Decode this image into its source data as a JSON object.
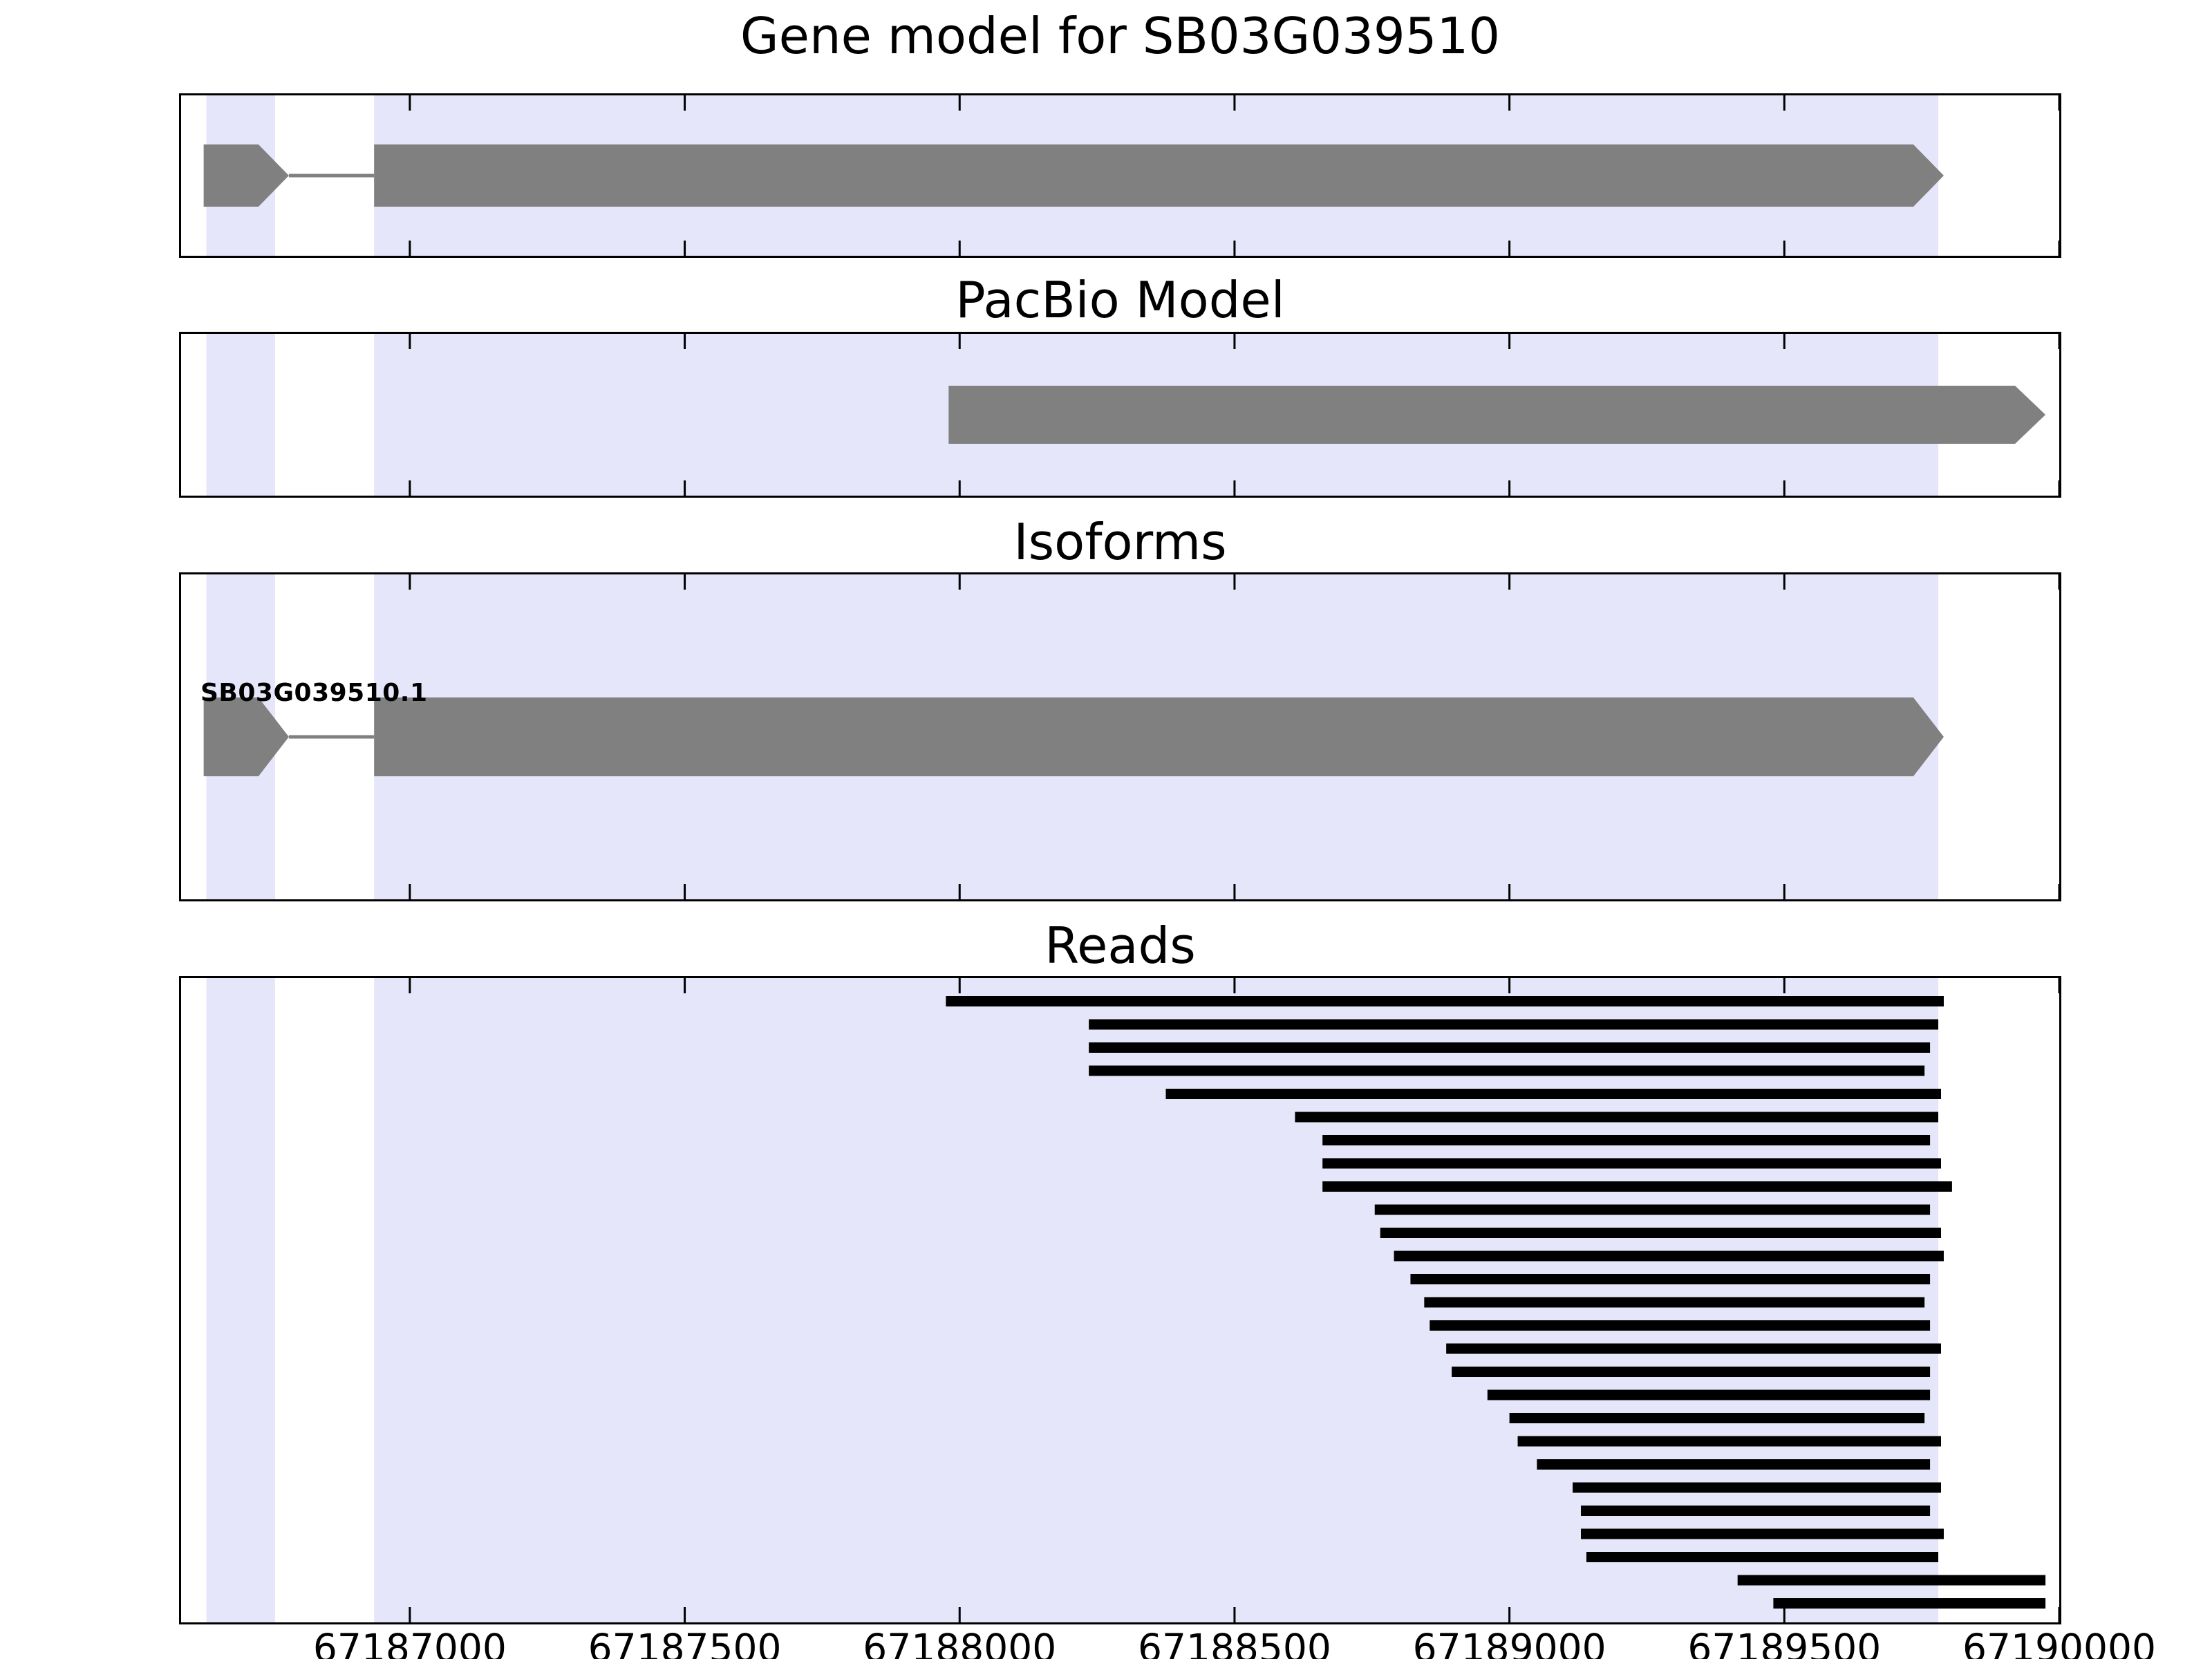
{
  "chart_data": {
    "type": "genome-browser",
    "x_axis": {
      "min": 67186584,
      "max": 67190000,
      "ticks": [
        67187000,
        67187500,
        67188000,
        67188500,
        67189000,
        67189500,
        67190000
      ],
      "tick_labels": [
        "67187000",
        "67187500",
        "67188000",
        "67188500",
        "67189000",
        "67189500",
        "67190000"
      ]
    },
    "highlight_regions": [
      {
        "start": 67186630,
        "end": 67186755
      },
      {
        "start": 67186935,
        "end": 67189780
      }
    ],
    "colors": {
      "highlight": "#e6e6fa",
      "feature_gray": "#808080",
      "read_black": "#000000",
      "panel_border": "#000000",
      "background": "#ffffff"
    },
    "panels": [
      {
        "name": "gene_model",
        "title": "Gene model for SB03G039510",
        "features": [
          {
            "type": "exon_arrow",
            "start": 67186625,
            "end": 67186780
          },
          {
            "type": "intron",
            "start": 67186780,
            "end": 67186935
          },
          {
            "type": "exon_arrow",
            "start": 67186935,
            "end": 67189790
          }
        ]
      },
      {
        "name": "pacbio_model",
        "title": "PacBio Model",
        "features": [
          {
            "type": "exon_arrow",
            "start": 67187980,
            "end": 67189975
          }
        ]
      },
      {
        "name": "isoforms",
        "title": "Isoforms",
        "isoform_label": "SB03G039510.1",
        "features": [
          {
            "type": "exon_arrow",
            "start": 67186625,
            "end": 67186780
          },
          {
            "type": "intron",
            "start": 67186780,
            "end": 67186935
          },
          {
            "type": "exon_arrow",
            "start": 67186935,
            "end": 67189790
          }
        ]
      },
      {
        "name": "reads",
        "title": "Reads",
        "reads": [
          [
            67187975,
            67189790
          ],
          [
            67188235,
            67189780
          ],
          [
            67188235,
            67189765
          ],
          [
            67188235,
            67189755
          ],
          [
            67188375,
            67189785
          ],
          [
            67188610,
            67189780
          ],
          [
            67188660,
            67189765
          ],
          [
            67188660,
            67189785
          ],
          [
            67188660,
            67189805
          ],
          [
            67188755,
            67189765
          ],
          [
            67188765,
            67189785
          ],
          [
            67188790,
            67189790
          ],
          [
            67188820,
            67189765
          ],
          [
            67188845,
            67189755
          ],
          [
            67188855,
            67189765
          ],
          [
            67188885,
            67189785
          ],
          [
            67188895,
            67189765
          ],
          [
            67188960,
            67189765
          ],
          [
            67189000,
            67189755
          ],
          [
            67189015,
            67189785
          ],
          [
            67189050,
            67189765
          ],
          [
            67189115,
            67189785
          ],
          [
            67189130,
            67189765
          ],
          [
            67189130,
            67189790
          ],
          [
            67189140,
            67189780
          ],
          [
            67189415,
            67189975
          ],
          [
            67189480,
            67189975
          ]
        ]
      }
    ]
  }
}
